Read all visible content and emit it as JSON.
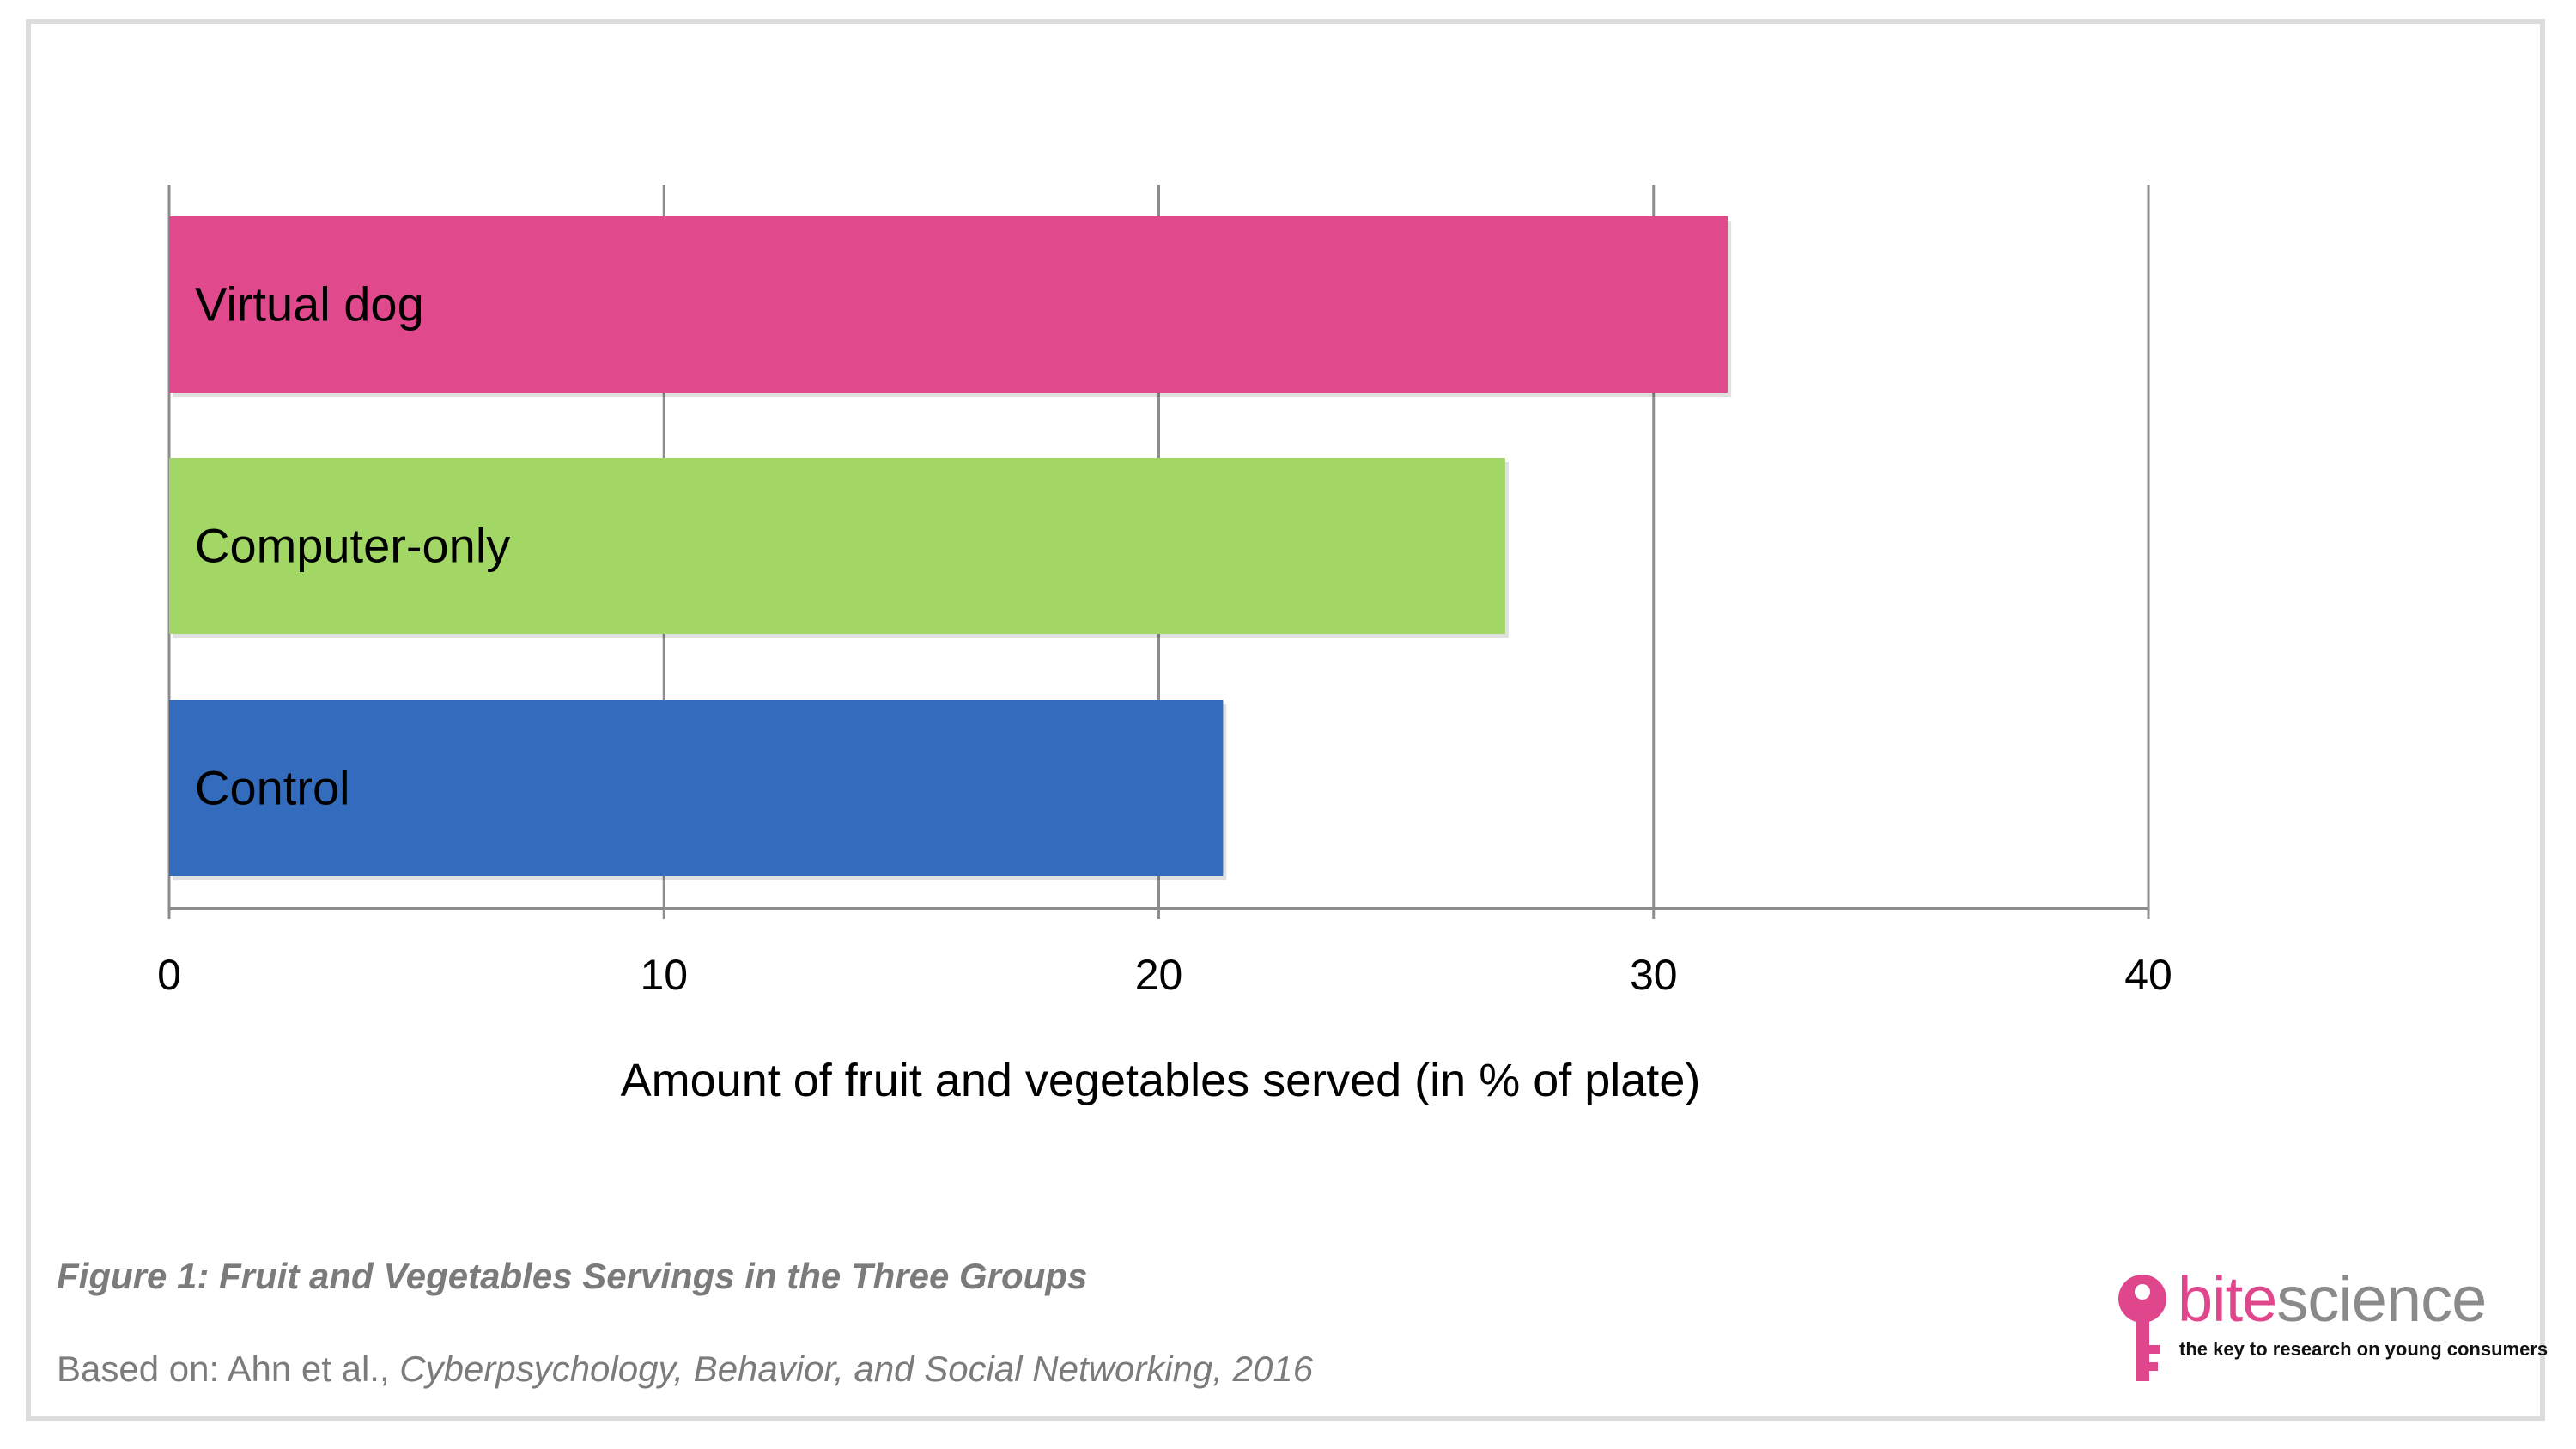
{
  "chart_data": {
    "type": "bar",
    "orientation": "horizontal",
    "categories": [
      "Virtual dog",
      "Computer-only",
      "Control"
    ],
    "values": [
      31.5,
      27.0,
      21.3
    ],
    "colors": [
      "#e0498c",
      "#a2d665",
      "#336cbd"
    ],
    "xlabel": "Amount of fruit and vegetables served (in % of plate)",
    "xlim": [
      0,
      40
    ],
    "xticks": [
      "0",
      "10",
      "20",
      "30",
      "40"
    ],
    "grid": true,
    "legend": "none"
  },
  "caption": "Figure 1: Fruit and Vegetables Servings in the Three Groups",
  "source": {
    "prefix": "Based on: Ahn et al., ",
    "journal": "Cyberpsychology, Behavior, and Social Networking, 2016"
  },
  "logo": {
    "word_bite": "bite",
    "word_science": "science",
    "tagline": "the key to research on young consumers",
    "color_bite": "#e0468c",
    "color_science": "#8a8a8a"
  }
}
